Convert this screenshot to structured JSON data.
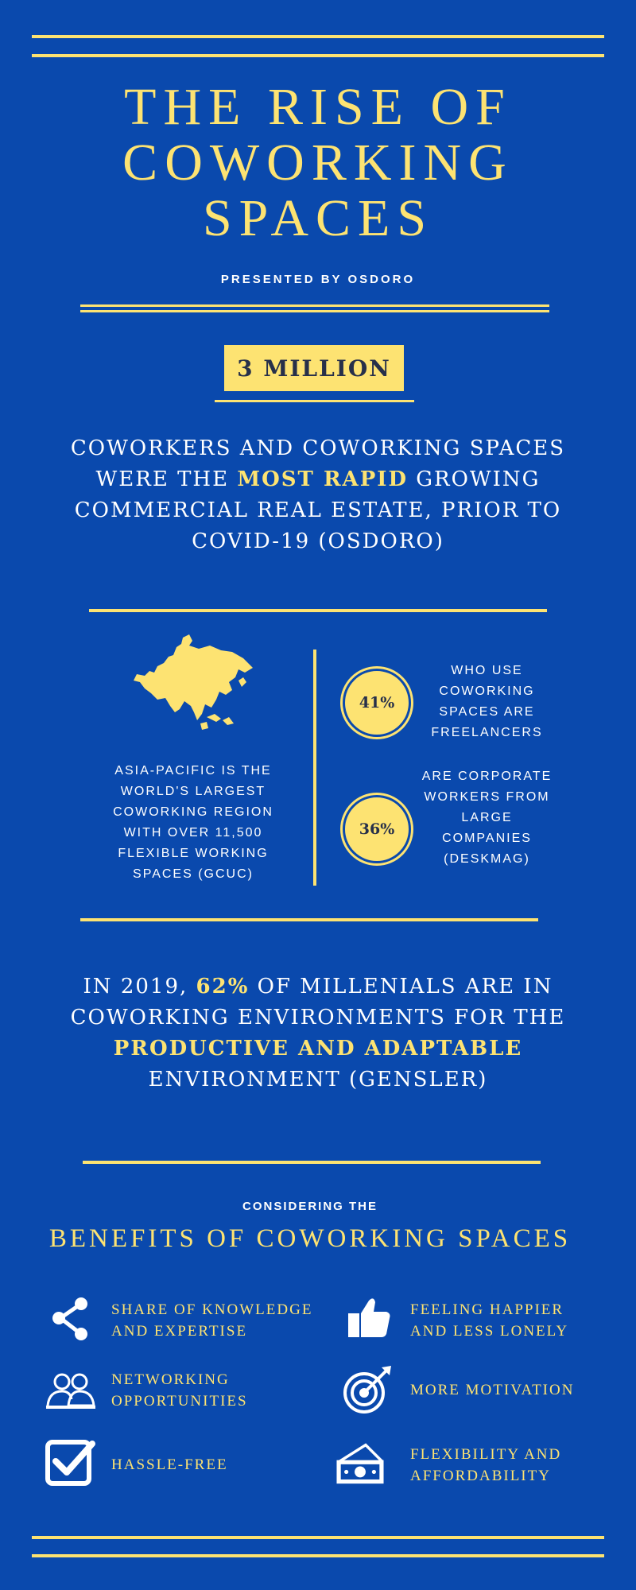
{
  "title": "THE RISE OF\nCOWORKING\nSPACES",
  "presented_by": "PRESENTED BY OSDORO",
  "badge": "3 MILLION",
  "intro": {
    "p1": "COWORKERS AND COWORKING SPACES WERE THE ",
    "highlight": "MOST RAPID",
    "p2": " GROWING COMMERCIAL REAL ESTATE, PRIOR TO COVID-19 (OSDORO)"
  },
  "asia": {
    "text": "ASIA-PACIFIC IS THE WORLD'S LARGEST COWORKING REGION WITH OVER 11,500 FLEXIBLE WORKING SPACES (GCUC)",
    "map_icon": "asia-map-icon"
  },
  "stats": [
    {
      "value": "41%",
      "text": "WHO USE COWORKING SPACES ARE FREELANCERS"
    },
    {
      "value": "36%",
      "text": "ARE CORPORATE WORKERS FROM LARGE COMPANIES (DESKMAG)"
    }
  ],
  "millenials": {
    "p1": "IN 2019, ",
    "h1": "62%",
    "p2": " OF MILLENIALS ARE IN COWORKING ENVIRONMENTS FOR THE ",
    "h2": "PRODUCTIVE AND ADAPTABLE",
    "p3": " ENVIRONMENT (GENSLER)"
  },
  "considering": "CONSIDERING THE",
  "benefits_title": "BENEFITS OF COWORKING SPACES",
  "benefits": [
    {
      "label": "SHARE OF KNOWLEDGE\nAND EXPERTISE",
      "icon": "share-icon"
    },
    {
      "label": "FEELING HAPPIER\nAND LESS LONELY",
      "icon": "thumbs-up-icon"
    },
    {
      "label": "NETWORKING\nOPPORTUNITIES",
      "icon": "people-icon"
    },
    {
      "label": "MORE MOTIVATION",
      "icon": "target-icon"
    },
    {
      "label": "HASSLE-FREE",
      "icon": "checkbox-icon"
    },
    {
      "label": "FLEXIBILITY AND\nAFFORDABILITY",
      "icon": "money-icon"
    }
  ],
  "colors": {
    "background": "#0a49ad",
    "accent": "#fde372",
    "dark_text": "#27304a"
  }
}
